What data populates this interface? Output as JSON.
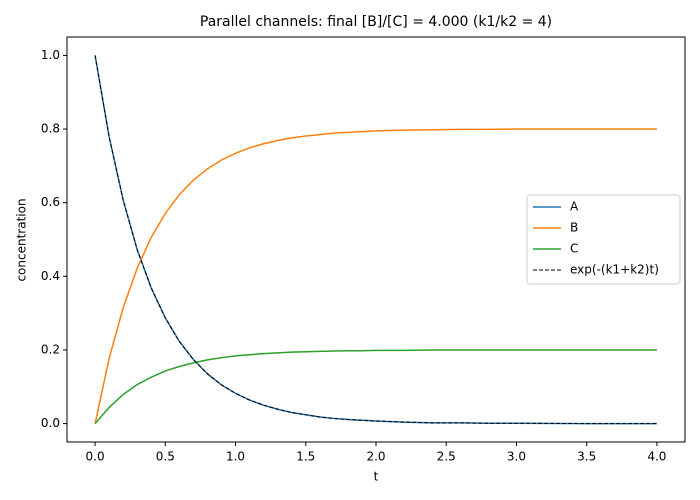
{
  "chart_data": {
    "type": "line",
    "title": "Parallel channels: final [B]/[C] = 4.000 (k1/k2 = 4)",
    "x_label": "t",
    "y_label": "concentration",
    "x": [
      0,
      0.1,
      0.2,
      0.3,
      0.4,
      0.5,
      0.6,
      0.7,
      0.8,
      0.9,
      1.0,
      1.1,
      1.2,
      1.3,
      1.4,
      1.5,
      1.6,
      1.7,
      1.8,
      1.9,
      2.0,
      2.2,
      2.4,
      2.6,
      2.8,
      3.0,
      3.5,
      4.0
    ],
    "series": [
      {
        "name": "A",
        "color": "#1f77b4",
        "linestyle": "solid",
        "values": [
          1,
          0.779,
          0.607,
          0.472,
          0.368,
          0.287,
          0.223,
          0.174,
          0.135,
          0.105,
          0.082,
          0.064,
          0.05,
          0.039,
          0.03,
          0.024,
          0.018,
          0.014,
          0.011,
          0.009,
          0.007,
          0.004,
          0.002,
          0.002,
          0.001,
          0.001,
          0,
          0
        ]
      },
      {
        "name": "B",
        "color": "#ff7f0e",
        "linestyle": "solid",
        "values": [
          0,
          0.177,
          0.315,
          0.422,
          0.506,
          0.571,
          0.622,
          0.661,
          0.692,
          0.716,
          0.734,
          0.749,
          0.76,
          0.769,
          0.776,
          0.781,
          0.785,
          0.789,
          0.791,
          0.793,
          0.795,
          0.797,
          0.798,
          0.799,
          0.799,
          0.8,
          0.8,
          0.8
        ]
      },
      {
        "name": "C",
        "color": "#2ca02c",
        "linestyle": "solid",
        "values": [
          0,
          0.044,
          0.079,
          0.106,
          0.126,
          0.143,
          0.155,
          0.165,
          0.173,
          0.179,
          0.184,
          0.187,
          0.19,
          0.192,
          0.194,
          0.195,
          0.196,
          0.197,
          0.198,
          0.198,
          0.199,
          0.199,
          0.2,
          0.2,
          0.2,
          0.2,
          0.2,
          0.2
        ]
      },
      {
        "name": "exp(-(k1+k2)t)",
        "color": "#000000",
        "linestyle": "dashed",
        "values": [
          1,
          0.779,
          0.607,
          0.472,
          0.368,
          0.287,
          0.223,
          0.174,
          0.135,
          0.105,
          0.082,
          0.064,
          0.05,
          0.039,
          0.03,
          0.024,
          0.018,
          0.014,
          0.011,
          0.009,
          0.007,
          0.004,
          0.002,
          0.002,
          0.001,
          0.001,
          0,
          0
        ]
      }
    ],
    "xlim": [
      -0.2,
      4.2
    ],
    "xticks": [
      {
        "value": 0,
        "label": "0.0"
      },
      0.5,
      {
        "value": 1,
        "label": "1.0"
      },
      1.5,
      {
        "value": 2,
        "label": "2.0"
      },
      2.5,
      {
        "value": 3,
        "label": "3.0"
      },
      3.5,
      {
        "value": 4,
        "label": "4.0"
      }
    ],
    "ylim": [
      -0.05,
      1.05
    ],
    "yticks": [
      {
        "value": 0,
        "label": "0.0"
      },
      0.2,
      0.4,
      0.6,
      0.8,
      {
        "value": 1,
        "label": "1.0"
      }
    ],
    "grid": false,
    "legend_position": "center right"
  }
}
